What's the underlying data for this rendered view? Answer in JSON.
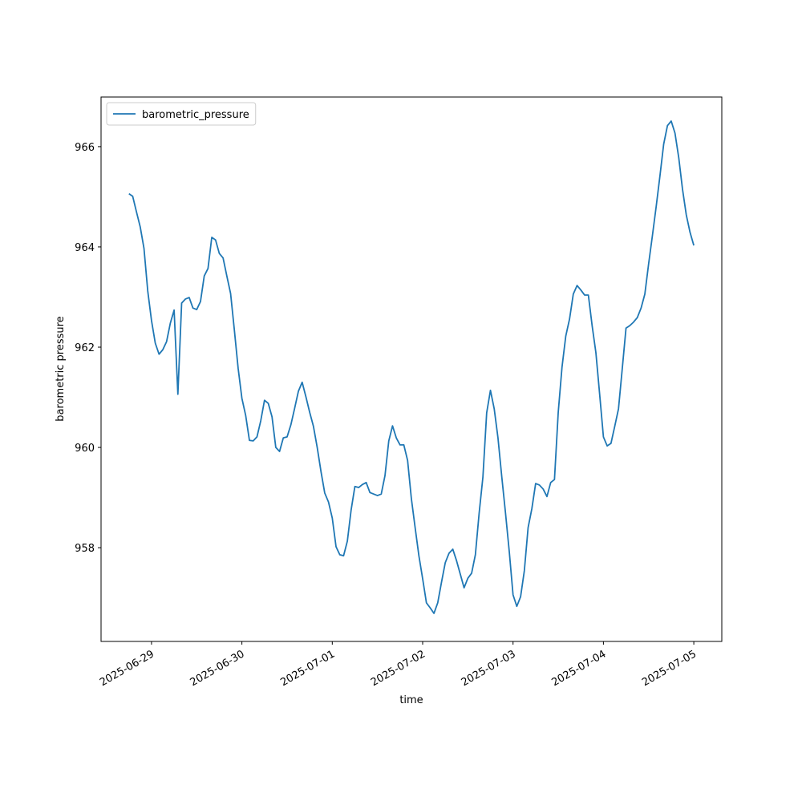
{
  "chart_data": {
    "type": "line",
    "xlabel": "time",
    "ylabel": "barometric pressure",
    "xlim": [
      "2025-06-28 10:36",
      "2025-07-05 07:26"
    ],
    "xticks": [
      "2025-06-29",
      "2025-06-30",
      "2025-07-01",
      "2025-07-02",
      "2025-07-03",
      "2025-07-04",
      "2025-07-05"
    ],
    "ylim": [
      956.13,
      966.99
    ],
    "yticks": [
      958,
      960,
      962,
      964,
      966
    ],
    "legend": "upper left",
    "x": [
      "2025-06-28 18:00",
      "2025-06-28 19:00",
      "2025-06-28 20:00",
      "2025-06-28 21:00",
      "2025-06-28 22:00",
      "2025-06-28 23:00",
      "2025-06-29 00:00",
      "2025-06-29 01:00",
      "2025-06-29 02:00",
      "2025-06-29 03:00",
      "2025-06-29 04:00",
      "2025-06-29 05:00",
      "2025-06-29 06:00",
      "2025-06-29 07:00",
      "2025-06-29 08:00",
      "2025-06-29 09:00",
      "2025-06-29 10:00",
      "2025-06-29 11:00",
      "2025-06-29 12:00",
      "2025-06-29 13:00",
      "2025-06-29 14:00",
      "2025-06-29 15:00",
      "2025-06-29 16:00",
      "2025-06-29 17:00",
      "2025-06-29 18:00",
      "2025-06-29 19:00",
      "2025-06-29 20:00",
      "2025-06-29 21:00",
      "2025-06-29 22:00",
      "2025-06-29 23:00",
      "2025-06-30 00:00",
      "2025-06-30 01:00",
      "2025-06-30 02:00",
      "2025-06-30 03:00",
      "2025-06-30 04:00",
      "2025-06-30 05:00",
      "2025-06-30 06:00",
      "2025-06-30 07:00",
      "2025-06-30 08:00",
      "2025-06-30 09:00",
      "2025-06-30 10:00",
      "2025-06-30 11:00",
      "2025-06-30 12:00",
      "2025-06-30 13:00",
      "2025-06-30 14:00",
      "2025-06-30 15:00",
      "2025-06-30 16:00",
      "2025-06-30 17:00",
      "2025-06-30 18:00",
      "2025-06-30 19:00",
      "2025-06-30 20:00",
      "2025-06-30 21:00",
      "2025-06-30 22:00",
      "2025-06-30 23:00",
      "2025-07-01 00:00",
      "2025-07-01 01:00",
      "2025-07-01 02:00",
      "2025-07-01 03:00",
      "2025-07-01 04:00",
      "2025-07-01 05:00",
      "2025-07-01 06:00",
      "2025-07-01 07:00",
      "2025-07-01 08:00",
      "2025-07-01 09:00",
      "2025-07-01 10:00",
      "2025-07-01 11:00",
      "2025-07-01 12:00",
      "2025-07-01 13:00",
      "2025-07-01 14:00",
      "2025-07-01 15:00",
      "2025-07-01 16:00",
      "2025-07-01 17:00",
      "2025-07-01 18:00",
      "2025-07-01 19:00",
      "2025-07-01 20:00",
      "2025-07-01 21:00",
      "2025-07-01 22:00",
      "2025-07-01 23:00",
      "2025-07-02 00:00",
      "2025-07-02 01:00",
      "2025-07-02 02:00",
      "2025-07-02 03:00",
      "2025-07-02 04:00",
      "2025-07-02 05:00",
      "2025-07-02 06:00",
      "2025-07-02 07:00",
      "2025-07-02 08:00",
      "2025-07-02 09:00",
      "2025-07-02 10:00",
      "2025-07-02 11:00",
      "2025-07-02 12:00",
      "2025-07-02 13:00",
      "2025-07-02 14:00",
      "2025-07-02 15:00",
      "2025-07-02 16:00",
      "2025-07-02 17:00",
      "2025-07-02 18:00",
      "2025-07-02 19:00",
      "2025-07-02 20:00",
      "2025-07-02 21:00",
      "2025-07-02 22:00",
      "2025-07-02 23:00",
      "2025-07-03 00:00",
      "2025-07-03 01:00",
      "2025-07-03 02:00",
      "2025-07-03 03:00",
      "2025-07-03 04:00",
      "2025-07-03 05:00",
      "2025-07-03 06:00",
      "2025-07-03 07:00",
      "2025-07-03 08:00",
      "2025-07-03 09:00",
      "2025-07-03 10:00",
      "2025-07-03 11:00",
      "2025-07-03 12:00",
      "2025-07-03 13:00",
      "2025-07-03 14:00",
      "2025-07-03 15:00",
      "2025-07-03 16:00",
      "2025-07-03 17:00",
      "2025-07-03 18:00",
      "2025-07-03 19:00",
      "2025-07-03 20:00",
      "2025-07-03 21:00",
      "2025-07-03 22:00",
      "2025-07-03 23:00",
      "2025-07-04 00:00",
      "2025-07-04 01:00",
      "2025-07-04 02:00",
      "2025-07-04 03:00",
      "2025-07-04 04:00",
      "2025-07-04 05:00",
      "2025-07-04 06:00",
      "2025-07-04 07:00",
      "2025-07-04 08:00",
      "2025-07-04 09:00",
      "2025-07-04 10:00",
      "2025-07-04 11:00",
      "2025-07-04 12:00",
      "2025-07-04 13:00",
      "2025-07-04 14:00",
      "2025-07-04 15:00",
      "2025-07-04 16:00",
      "2025-07-04 17:00",
      "2025-07-04 18:00",
      "2025-07-04 19:00",
      "2025-07-04 20:00",
      "2025-07-04 21:00",
      "2025-07-04 22:00",
      "2025-07-04 23:00",
      "2025-07-05 00:00"
    ],
    "series": [
      {
        "name": "barometric_pressure",
        "color": "#1f77b4",
        "values": [
          965.06,
          965.01,
          964.7,
          964.4,
          963.97,
          963.12,
          962.53,
          962.08,
          961.86,
          961.95,
          962.11,
          962.48,
          962.74,
          961.06,
          962.88,
          962.96,
          962.99,
          962.78,
          962.75,
          962.91,
          963.42,
          963.57,
          964.19,
          964.14,
          963.87,
          963.78,
          963.42,
          963.07,
          962.34,
          961.58,
          960.98,
          960.64,
          960.14,
          960.13,
          960.21,
          960.53,
          960.94,
          960.88,
          960.61,
          960.0,
          959.92,
          960.19,
          960.21,
          960.45,
          960.78,
          961.12,
          961.3,
          961.01,
          960.7,
          960.42,
          960.0,
          959.52,
          959.09,
          958.91,
          958.59,
          958.02,
          957.86,
          957.84,
          958.13,
          958.75,
          959.22,
          959.2,
          959.26,
          959.3,
          959.1,
          959.07,
          959.04,
          959.07,
          959.44,
          960.13,
          960.43,
          960.19,
          960.05,
          960.05,
          959.74,
          958.98,
          958.4,
          957.84,
          957.38,
          956.9,
          956.8,
          956.69,
          956.9,
          957.31,
          957.7,
          957.89,
          957.97,
          957.74,
          957.47,
          957.2,
          957.39,
          957.49,
          957.86,
          958.69,
          959.41,
          960.69,
          961.14,
          960.77,
          960.19,
          959.42,
          958.69,
          957.92,
          957.06,
          956.83,
          957.02,
          957.54,
          958.4,
          958.78,
          959.28,
          959.25,
          959.17,
          959.02,
          959.3,
          959.36,
          960.7,
          961.6,
          962.22,
          962.56,
          963.06,
          963.23,
          963.14,
          963.04,
          963.04,
          962.43,
          961.89,
          961.06,
          960.21,
          960.03,
          960.08,
          960.42,
          960.77,
          961.57,
          962.38,
          962.43,
          962.5,
          962.59,
          962.78,
          963.06,
          963.66,
          964.22,
          964.8,
          965.41,
          966.05,
          966.42,
          966.51,
          966.27,
          965.78,
          965.15,
          964.64,
          964.29,
          964.03
        ]
      }
    ]
  }
}
